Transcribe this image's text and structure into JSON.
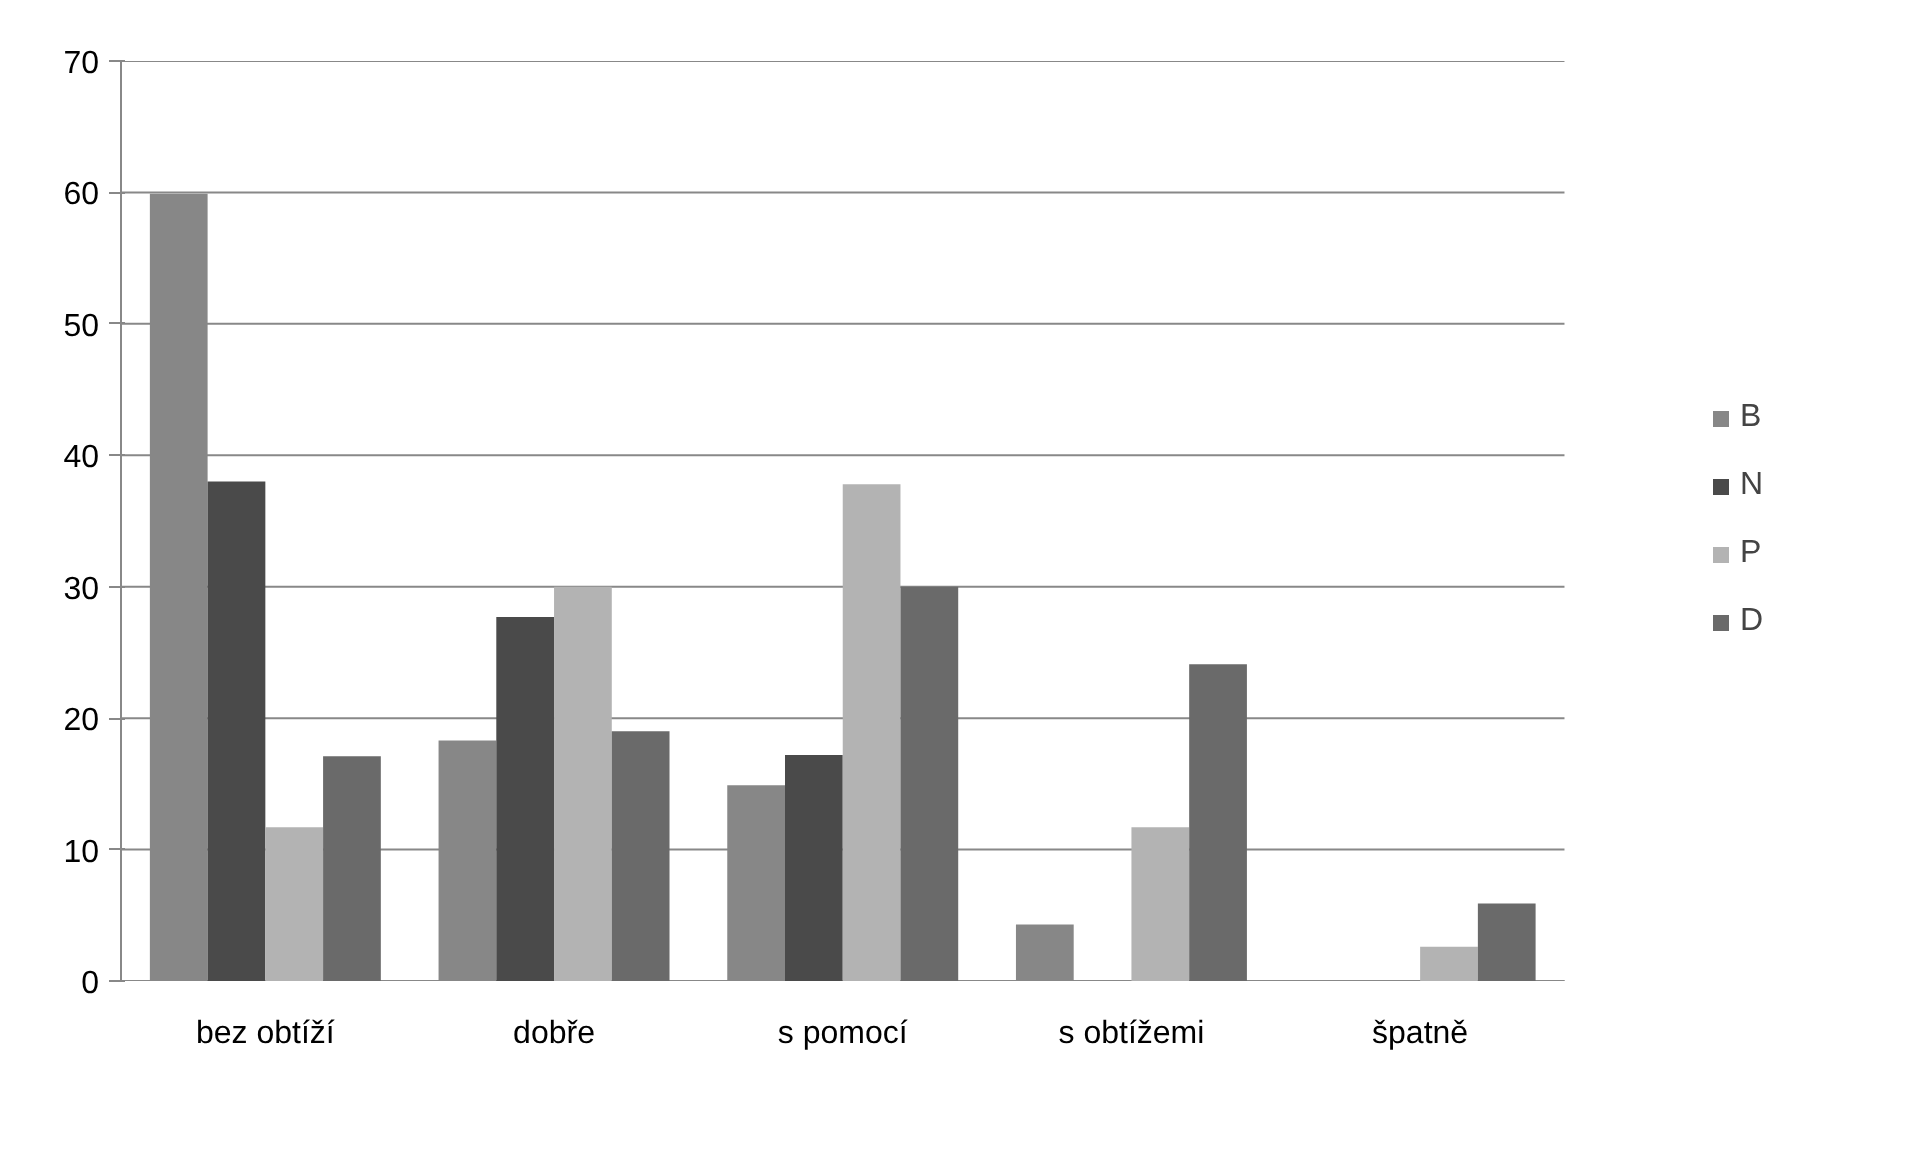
{
  "chart_data": {
    "type": "bar",
    "categories": [
      "bez obtíží",
      "dobře",
      "s pomocí",
      "s obtížemi",
      "špatně"
    ],
    "series": [
      {
        "name": "B",
        "color": "#878787",
        "values": [
          59.9,
          18.3,
          14.9,
          4.3,
          0
        ]
      },
      {
        "name": "N",
        "color": "#4a4a4a",
        "values": [
          38,
          27.7,
          17.2,
          0,
          0
        ]
      },
      {
        "name": "P",
        "color": "#b3b3b3",
        "values": [
          11.7,
          30,
          37.8,
          11.7,
          2.6
        ]
      },
      {
        "name": "D",
        "color": "#6a6a6a",
        "values": [
          17.1,
          19,
          30,
          24.1,
          5.9
        ]
      }
    ],
    "ylim": [
      0,
      70
    ],
    "yticks": [
      0,
      10,
      20,
      30,
      40,
      50,
      60,
      70
    ],
    "grid": "y",
    "legend": "right"
  }
}
